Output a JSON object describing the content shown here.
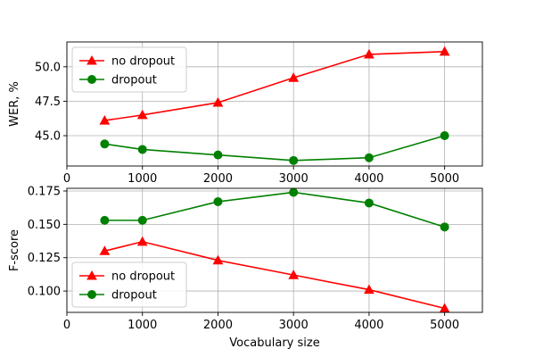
{
  "chart_data": [
    {
      "type": "line",
      "xlabel": "",
      "ylabel": "WER, %",
      "xlim": [
        0,
        5500
      ],
      "ylim": [
        42.8,
        51.8
      ],
      "xticks": [
        0,
        1000,
        2000,
        3000,
        4000,
        5000
      ],
      "xtick_labels": [
        "0",
        "1000",
        "2000",
        "3000",
        "4000",
        "5000"
      ],
      "yticks": [
        45.0,
        47.5,
        50.0
      ],
      "ytick_labels": [
        "45.0",
        "47.5",
        "50.0"
      ],
      "grid": true,
      "legend_position": "upper-left",
      "series": [
        {
          "name": "no dropout",
          "color": "#ff0000",
          "marker": "triangle",
          "x": [
            500,
            1000,
            2000,
            3000,
            4000,
            5000
          ],
          "y": [
            46.1,
            46.5,
            47.4,
            49.2,
            50.9,
            51.1
          ]
        },
        {
          "name": "dropout",
          "color": "#008000",
          "marker": "circle",
          "x": [
            500,
            1000,
            2000,
            3000,
            4000,
            5000
          ],
          "y": [
            44.4,
            44.0,
            43.6,
            43.2,
            43.4,
            45.0
          ]
        }
      ]
    },
    {
      "type": "line",
      "xlabel": "Vocabulary size",
      "ylabel": "F-score",
      "xlim": [
        0,
        5500
      ],
      "ylim": [
        0.084,
        0.177
      ],
      "xticks": [
        0,
        1000,
        2000,
        3000,
        4000,
        5000
      ],
      "xtick_labels": [
        "0",
        "1000",
        "2000",
        "3000",
        "4000",
        "5000"
      ],
      "yticks": [
        0.1,
        0.125,
        0.15,
        0.175
      ],
      "ytick_labels": [
        "0.100",
        "0.125",
        "0.150",
        "0.175"
      ],
      "grid": true,
      "legend_position": "lower-left",
      "series": [
        {
          "name": "no dropout",
          "color": "#ff0000",
          "marker": "triangle",
          "x": [
            500,
            1000,
            2000,
            3000,
            4000,
            5000
          ],
          "y": [
            0.13,
            0.137,
            0.123,
            0.112,
            0.101,
            0.087
          ]
        },
        {
          "name": "dropout",
          "color": "#008000",
          "marker": "circle",
          "x": [
            500,
            1000,
            2000,
            3000,
            4000,
            5000
          ],
          "y": [
            0.153,
            0.153,
            0.167,
            0.174,
            0.166,
            0.148
          ]
        }
      ]
    }
  ]
}
